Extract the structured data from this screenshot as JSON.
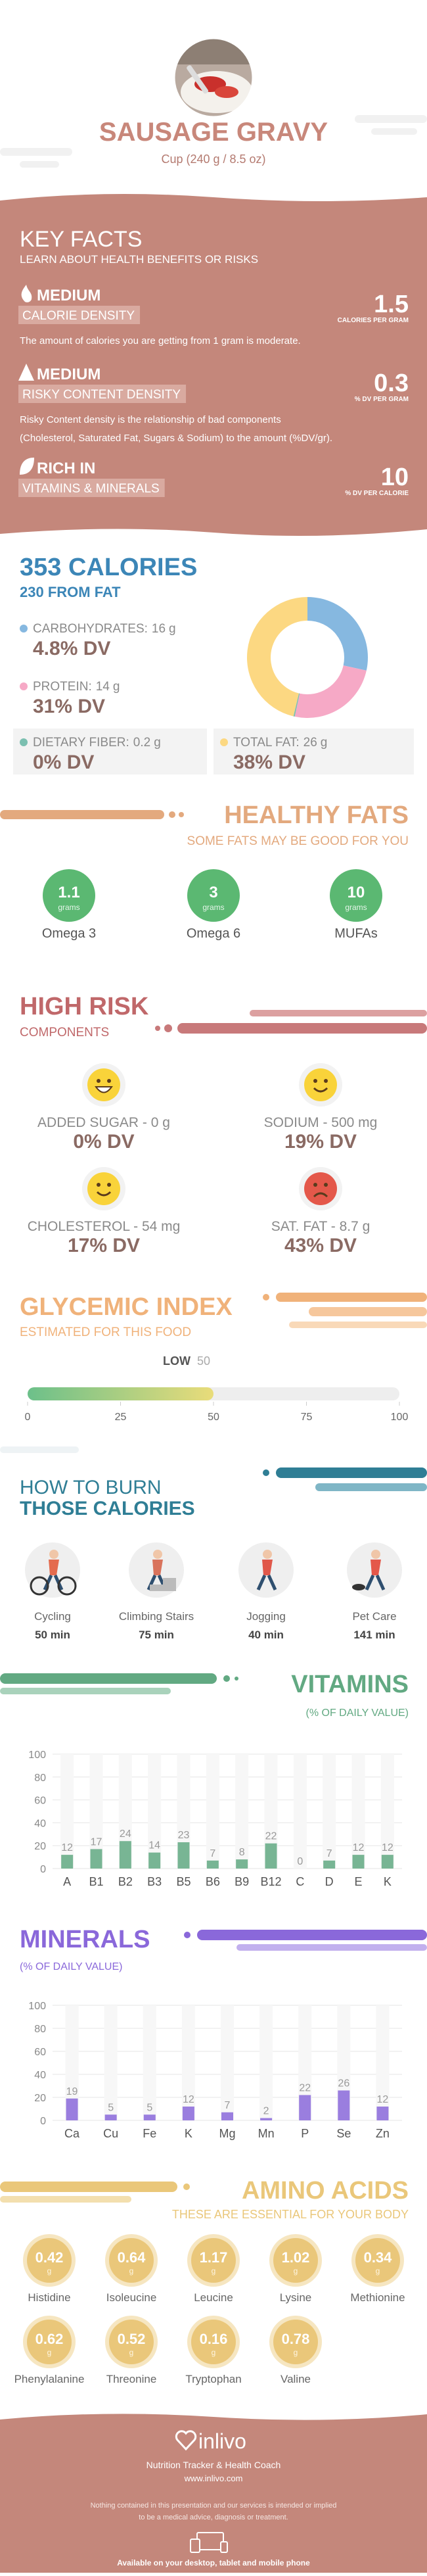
{
  "header": {
    "title": "SAUSAGE GRAVY",
    "serving": "Cup (240 g / 8.5 oz)"
  },
  "key_facts": {
    "title": "KEY FACTS",
    "subtitle": "LEARN ABOUT HEALTH BENEFITS OR RISKS",
    "facts": [
      {
        "level": "MEDIUM",
        "name": "CALORIE DENSITY",
        "value": 1.5,
        "unit": "CALORIES PER GRAM",
        "description": [
          "The amount of calories you are getting from 1 gram is moderate."
        ]
      },
      {
        "level": "MEDIUM",
        "name": "RISKY CONTENT DENSITY",
        "value": 0.3,
        "unit": "% DV PER GRAM",
        "description": [
          "Risky Content density is the relationship of bad components",
          "(Cholesterol, Saturated Fat, Sugars & Sodium) to the amount (%DV/gr)."
        ]
      },
      {
        "level": "RICH IN",
        "name": "VITAMINS & MINERALS",
        "value": 10,
        "unit": "% DV PER CALORIE"
      }
    ]
  },
  "calories": {
    "title": "353 CALORIES",
    "from_fat": "230 FROM FAT",
    "nutrients": [
      {
        "name": "CARBOHYDRATES:",
        "value": 16,
        "unit": "g",
        "dv": "4.8% DV",
        "color": "#86b8e0"
      },
      {
        "name": "PROTEIN:",
        "value": 14,
        "unit": "g",
        "dv": "31% DV",
        "color": "#f6a9c6"
      },
      {
        "name": "DIETARY FIBER:",
        "value": 0.2,
        "unit": "g",
        "dv": "0% DV",
        "color": "#7bbfb0"
      },
      {
        "name": "TOTAL FAT:",
        "value": 26,
        "unit": "g",
        "dv": "38% DV",
        "color": "#fcd882"
      }
    ]
  },
  "healthy_fats": {
    "title": "HEALTHY FATS",
    "subtitle": "SOME FATS MAY BE GOOD FOR YOU",
    "unit": "grams",
    "items": [
      {
        "name": "Omega 3",
        "value": 1.1
      },
      {
        "name": "Omega 6",
        "value": 3
      },
      {
        "name": "MUFAs",
        "value": 10
      }
    ]
  },
  "high_risk": {
    "title": "HIGH RISK",
    "subtitle": "COMPONENTS",
    "items": [
      {
        "name": "ADDED SUGAR - 0 g",
        "dv": "0% DV",
        "mood": "great"
      },
      {
        "name": "SODIUM - 500 mg",
        "dv": "19% DV",
        "mood": "good"
      },
      {
        "name": "CHOLESTEROL - 54 mg",
        "dv": "17% DV",
        "mood": "good"
      },
      {
        "name": "SAT. FAT - 8.7 g",
        "dv": "43% DV",
        "mood": "bad"
      }
    ]
  },
  "glycemic_index": {
    "title": "GLYCEMIC INDEX",
    "subtitle": "ESTIMATED FOR THIS FOOD",
    "level": "LOW",
    "value": 50,
    "range": [
      0,
      100
    ],
    "ticks": [
      0,
      25,
      50,
      75,
      100
    ]
  },
  "burn": {
    "title": [
      "HOW TO BURN",
      "THOSE CALORIES"
    ],
    "activities": [
      {
        "name": "Cycling",
        "time": "50 min"
      },
      {
        "name": "Climbing Stairs",
        "time": "75 min"
      },
      {
        "name": "Jogging",
        "time": "40 min"
      },
      {
        "name": "Pet Care",
        "time": "141 min"
      }
    ]
  },
  "vitamins": {
    "title": "VITAMINS",
    "subtitle": "(% OF DAILY VALUE)",
    "color": "#62a982",
    "ylim": [
      0,
      100
    ],
    "yticks": [
      0,
      20,
      40,
      60,
      80,
      100
    ],
    "categories": [
      "A",
      "B1",
      "B2",
      "B3",
      "B5",
      "B6",
      "B9",
      "B12",
      "C",
      "D",
      "E",
      "K"
    ],
    "values": [
      12,
      17,
      24,
      14,
      23,
      7,
      8,
      22,
      0,
      7,
      12,
      12
    ]
  },
  "minerals": {
    "title": "MINERALS",
    "subtitle": "(% OF DAILY VALUE)",
    "color": "#8a68da",
    "ylim": [
      0,
      100
    ],
    "yticks": [
      0,
      20,
      40,
      60,
      80,
      100
    ],
    "categories": [
      "Ca",
      "Cu",
      "Fe",
      "K",
      "Mg",
      "Mn",
      "P",
      "Se",
      "Zn"
    ],
    "values": [
      19,
      5,
      5,
      12,
      7,
      2,
      22,
      26,
      12
    ]
  },
  "amino_acids": {
    "title": "AMINO ACIDS",
    "subtitle": "THESE ARE ESSENTIAL FOR YOUR BODY",
    "unit": "g",
    "items": [
      {
        "name": "Histidine",
        "value": 0.42
      },
      {
        "name": "Isoleucine",
        "value": 0.64
      },
      {
        "name": "Leucine",
        "value": 1.17
      },
      {
        "name": "Lysine",
        "value": 1.02
      },
      {
        "name": "Methionine",
        "value": 0.34
      },
      {
        "name": "Phenylalanine",
        "value": 0.62
      },
      {
        "name": "Threonine",
        "value": 0.52
      },
      {
        "name": "Tryptophan",
        "value": 0.16
      },
      {
        "name": "Valine",
        "value": 0.78
      }
    ]
  },
  "footer": {
    "brand": "inlivo",
    "tagline": "Nutrition Tracker & Health Coach",
    "url": "www.inlivo.com",
    "disclaimer": [
      "Nothing contained in this presentation and our services is intended or implied",
      "to be a medical advice, diagnosis or treatment."
    ],
    "availability": "Available on your desktop, tablet and mobile phone"
  }
}
